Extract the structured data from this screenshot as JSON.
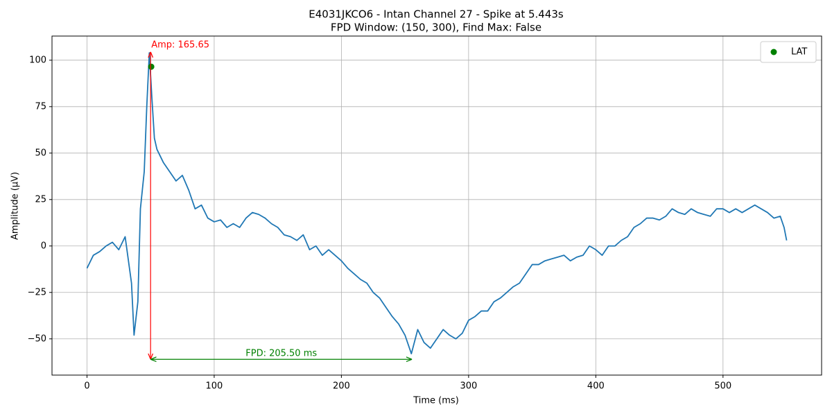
{
  "chart_data": {
    "type": "line",
    "title": "E4031JKCO6 - Intan Channel 27 - Spike at 5.443s",
    "subtitle": "FPD Window: (150, 300), Find Max: False",
    "xlabel": "Time (ms)",
    "ylabel": "Amplitude (µV)",
    "xlim": [
      -27.5,
      577.5
    ],
    "ylim": [
      -69.5,
      113
    ],
    "xticks": [
      0,
      100,
      200,
      300,
      400,
      500
    ],
    "yticks": [
      {
        "value": -50,
        "label": "−50"
      },
      {
        "value": -25,
        "label": "−25"
      },
      0,
      25,
      50,
      75,
      100
    ],
    "grid": true,
    "legend": "upper right",
    "x": [
      0,
      5,
      10,
      15,
      20,
      25,
      30,
      35,
      37,
      40,
      42,
      45,
      47,
      49,
      51,
      53,
      55,
      60,
      65,
      70,
      75,
      80,
      85,
      90,
      95,
      100,
      105,
      110,
      115,
      120,
      125,
      130,
      135,
      140,
      145,
      150,
      155,
      160,
      165,
      170,
      175,
      180,
      185,
      190,
      195,
      200,
      205,
      210,
      215,
      220,
      225,
      230,
      235,
      240,
      245,
      250,
      255,
      260,
      265,
      270,
      275,
      280,
      285,
      290,
      295,
      300,
      305,
      310,
      315,
      320,
      325,
      330,
      335,
      340,
      345,
      350,
      355,
      360,
      365,
      370,
      375,
      380,
      385,
      390,
      395,
      400,
      405,
      410,
      415,
      420,
      425,
      430,
      435,
      440,
      445,
      450,
      455,
      460,
      465,
      470,
      475,
      480,
      485,
      490,
      495,
      500,
      505,
      510,
      515,
      520,
      525,
      530,
      535,
      540,
      545,
      548,
      550
    ],
    "series": [
      {
        "name": null,
        "color": "#1f77b4",
        "values": [
          -12,
          -5,
          -3,
          0,
          2,
          -2,
          5,
          -20,
          -48,
          -30,
          20,
          40,
          75,
          104,
          80,
          58,
          52,
          45,
          40,
          35,
          38,
          30,
          20,
          22,
          15,
          13,
          14,
          10,
          12,
          10,
          15,
          18,
          17,
          15,
          12,
          10,
          6,
          5,
          3,
          6,
          -2,
          0,
          -5,
          -2,
          -5,
          -8,
          -12,
          -15,
          -18,
          -20,
          -25,
          -28,
          -33,
          -38,
          -42,
          -48,
          -58,
          -45,
          -52,
          -55,
          -50,
          -45,
          -48,
          -50,
          -47,
          -40,
          -38,
          -35,
          -35,
          -30,
          -28,
          -25,
          -22,
          -20,
          -15,
          -10,
          -10,
          -8,
          -7,
          -6,
          -5,
          -8,
          -6,
          -5,
          0,
          -2,
          -5,
          0,
          0,
          3,
          5,
          10,
          12,
          15,
          15,
          14,
          16,
          20,
          18,
          17,
          20,
          18,
          17,
          16,
          20,
          20,
          18,
          20,
          18,
          20,
          22,
          20,
          18,
          15,
          16,
          10,
          3
        ]
      },
      {
        "name": "LAT",
        "type": "scatter",
        "color": "green",
        "x": [
          50.5
        ],
        "values": [
          96.5
        ]
      }
    ],
    "annotations": [
      {
        "text": "Amp: 165.65",
        "color": "red",
        "x": 50,
        "y": [
          -61,
          104.5
        ]
      },
      {
        "text": "FPD: 205.50 ms",
        "color": "green",
        "x": [
          50,
          255.5
        ],
        "y": -61
      }
    ]
  }
}
